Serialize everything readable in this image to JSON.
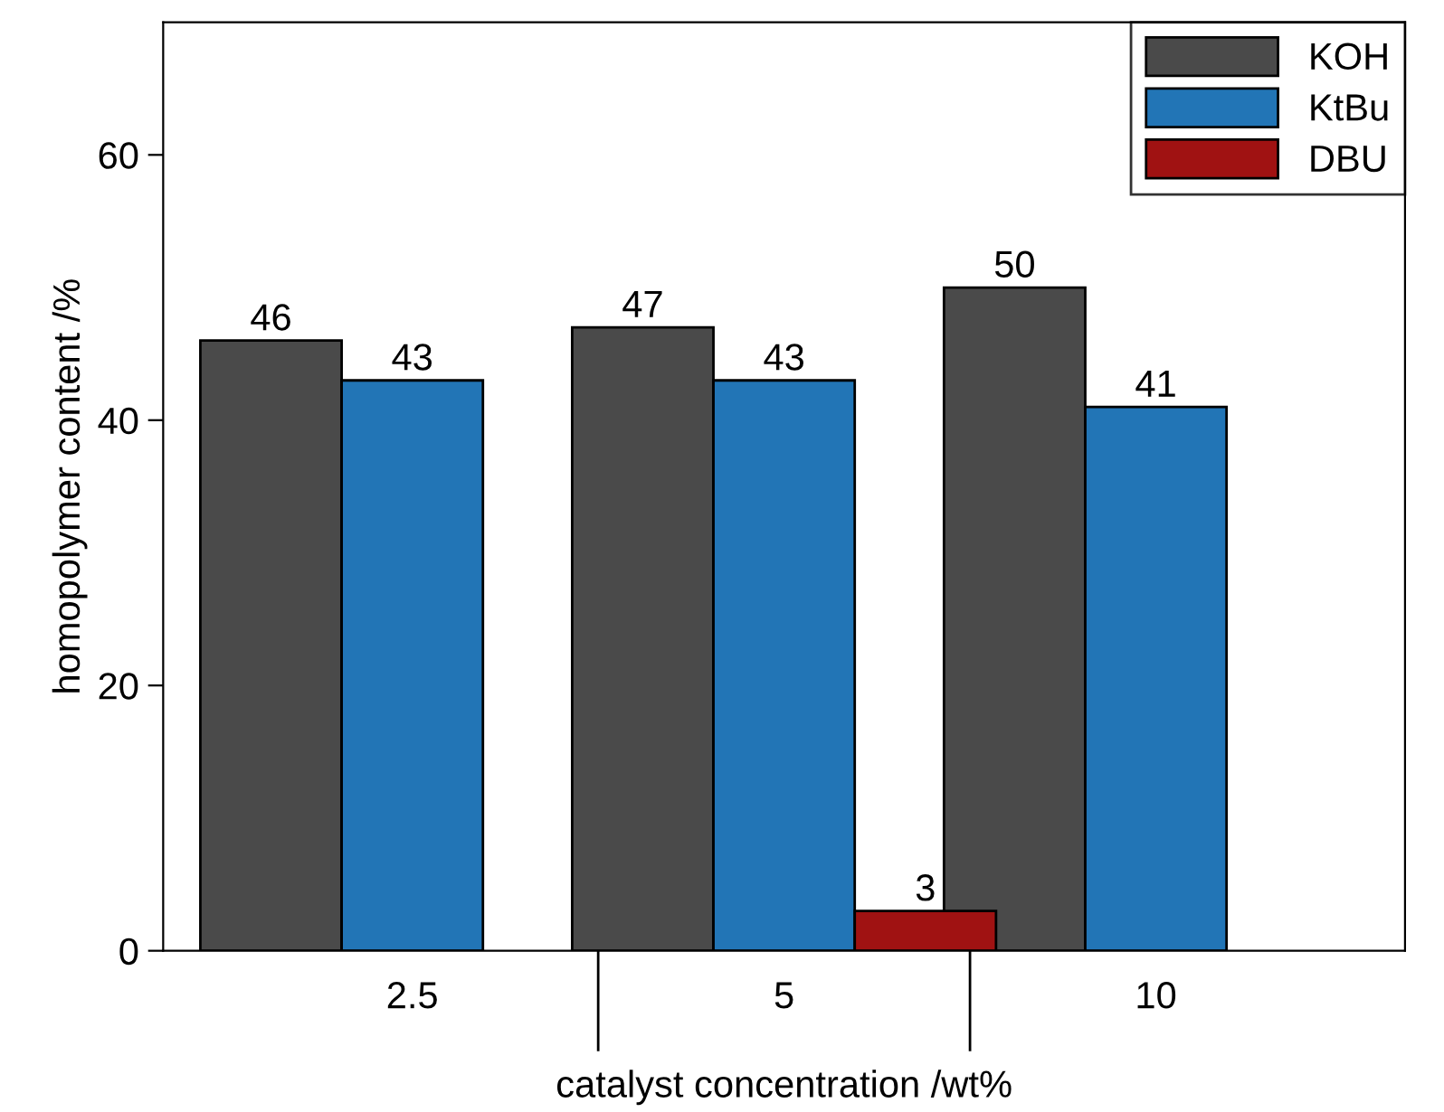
{
  "chart_data": {
    "type": "bar",
    "xlabel": "catalyst concentration /wt%",
    "ylabel": "homopolymer content /%",
    "categories": [
      "2.5",
      "5",
      "10"
    ],
    "series": [
      {
        "name": "KOH",
        "color": "#4a4a4a",
        "values": [
          46,
          47,
          50
        ]
      },
      {
        "name": "KtBu",
        "color": "#2275b6",
        "values": [
          43,
          43,
          41
        ]
      },
      {
        "name": "DBU",
        "color": "#a01212",
        "values": [
          null,
          3,
          null
        ]
      }
    ],
    "ylim": [
      0,
      70
    ],
    "yticks": [
      0,
      20,
      40,
      60
    ],
    "data_labels": true,
    "legend": "top right",
    "grid": false
  }
}
